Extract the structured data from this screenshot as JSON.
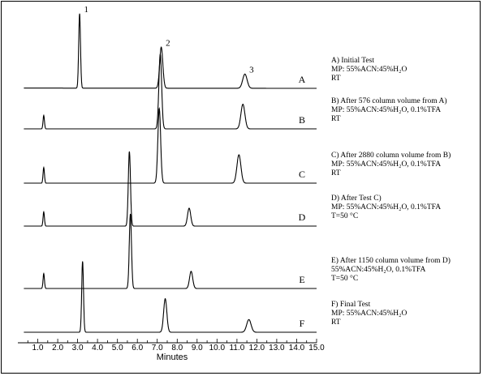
{
  "chart_data": {
    "type": "line",
    "xlabel": "Minutes",
    "xlim": [
      0,
      15.0
    ],
    "xticks": [
      "1.0",
      "2.0",
      "3.0",
      "4.0",
      "5.0",
      "6.0",
      "7.0",
      "8.0",
      "9.0",
      "10.0",
      "11.0",
      "12.0",
      "13.0",
      "14.0",
      "15.0"
    ],
    "peak_labels": [
      {
        "text": "1",
        "x": 3.2,
        "y": 1.0,
        "series": "A"
      },
      {
        "text": "2",
        "x": 7.3,
        "y": 0.55,
        "series": "A"
      },
      {
        "text": "3",
        "x": 11.5,
        "y": 0.19,
        "series": "A"
      }
    ],
    "series": [
      {
        "name": "A",
        "baseline_drift": 0.04,
        "peaks": [
          {
            "x": 3.1,
            "h": 1.0,
            "w": 0.045
          },
          {
            "x": 7.2,
            "h": 0.55,
            "w": 0.08
          },
          {
            "x": 11.4,
            "h": 0.19,
            "w": 0.11
          }
        ],
        "annotation": [
          "A) Initial Test",
          "MP: 55%ACN:45%H₂O",
          "RT"
        ]
      },
      {
        "name": "B",
        "baseline_drift": 0.0,
        "peaks": [
          {
            "x": 1.3,
            "h": 0.18,
            "w": 0.035
          },
          {
            "x": 7.15,
            "h": 1.0,
            "w": 0.07
          },
          {
            "x": 11.3,
            "h": 0.33,
            "w": 0.1
          }
        ],
        "annotation": [
          "B) After 576 column volume from A)",
          "MP: 55%ACN:45%H₂O, 0.1%TFA",
          "RT"
        ]
      },
      {
        "name": "C",
        "baseline_drift": 0.0,
        "peaks": [
          {
            "x": 1.3,
            "h": 0.21,
            "w": 0.035
          },
          {
            "x": 7.1,
            "h": 1.0,
            "w": 0.07
          },
          {
            "x": 11.1,
            "h": 0.38,
            "w": 0.1
          }
        ],
        "annotation": [
          "C) After 2880 column volume from B)",
          "MP: 55%ACN:45%H₂O, 0.1%TFA",
          "RT"
        ]
      },
      {
        "name": "D",
        "baseline_drift": 0.0,
        "peaks": [
          {
            "x": 1.3,
            "h": 0.19,
            "w": 0.035
          },
          {
            "x": 5.6,
            "h": 1.0,
            "w": 0.055
          },
          {
            "x": 8.6,
            "h": 0.24,
            "w": 0.08
          }
        ],
        "annotation": [
          "D) After Test C)",
          "MP: 55%ACN:45%H₂O, 0.1%TFA",
          "T=50 °C"
        ]
      },
      {
        "name": "E",
        "baseline_drift": 0.0,
        "peaks": [
          {
            "x": 1.3,
            "h": 0.2,
            "w": 0.035
          },
          {
            "x": 5.65,
            "h": 1.0,
            "w": 0.055
          },
          {
            "x": 8.7,
            "h": 0.23,
            "w": 0.08
          }
        ],
        "annotation": [
          "E) After 1150 column volume from D)",
          "55%ACN:45%H₂O, 0.1%TFA",
          "T=50 °C"
        ]
      },
      {
        "name": "F",
        "baseline_drift": 0.0,
        "peaks": [
          {
            "x": 3.25,
            "h": 0.95,
            "w": 0.045
          },
          {
            "x": 7.4,
            "h": 0.45,
            "w": 0.08
          },
          {
            "x": 11.6,
            "h": 0.17,
            "w": 0.11
          }
        ],
        "annotation": [
          "F) Final Test",
          "MP: 55%ACN:45%H₂O",
          "RT"
        ]
      }
    ],
    "grid": false,
    "legend": "none"
  }
}
